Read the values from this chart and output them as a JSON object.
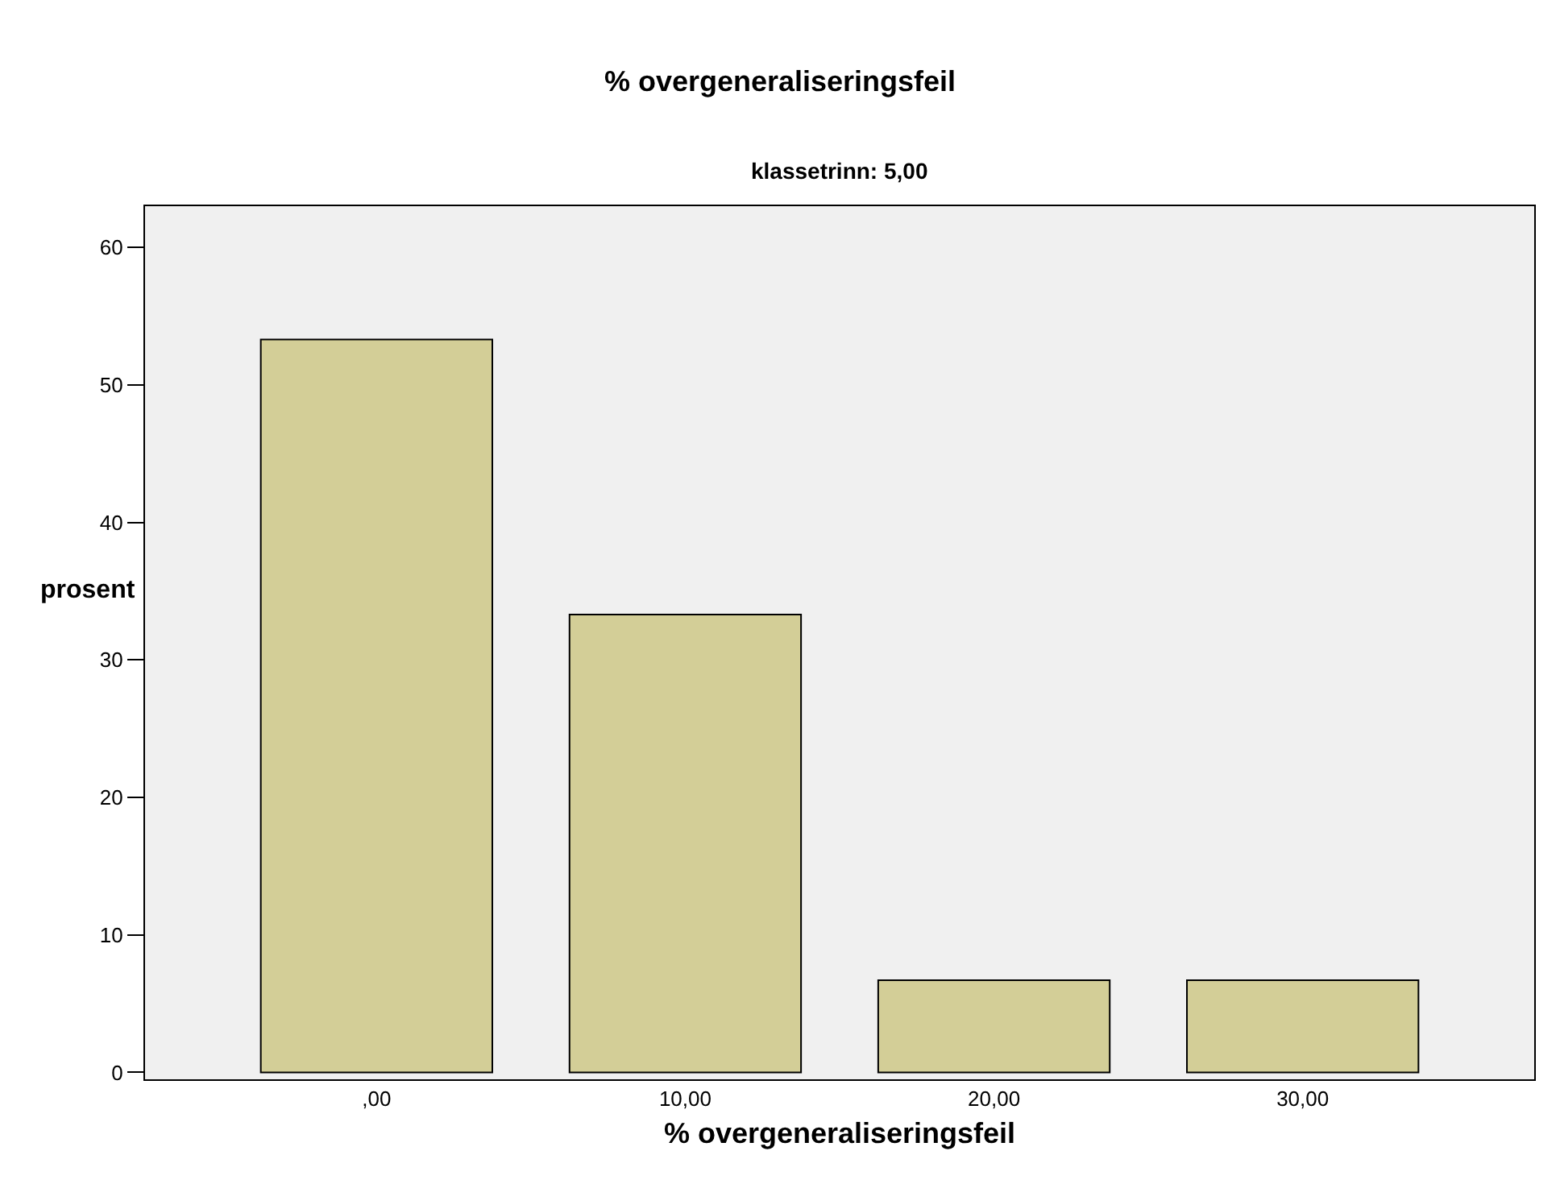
{
  "chart_data": {
    "type": "bar",
    "title": "% overgeneraliseringsfeil",
    "subtitle": "klassetrinn: 5,00",
    "xlabel": "% overgeneraliseringsfeil",
    "ylabel": "prosent",
    "categories": [
      ",00",
      "10,00",
      "20,00",
      "30,00"
    ],
    "values": [
      53.3,
      33.3,
      6.7,
      6.7
    ],
    "color": "#d3ce97",
    "ylim": [
      -0.5,
      63
    ],
    "yticks": [
      0,
      10,
      20,
      30,
      40,
      50,
      60
    ],
    "grid": false
  }
}
